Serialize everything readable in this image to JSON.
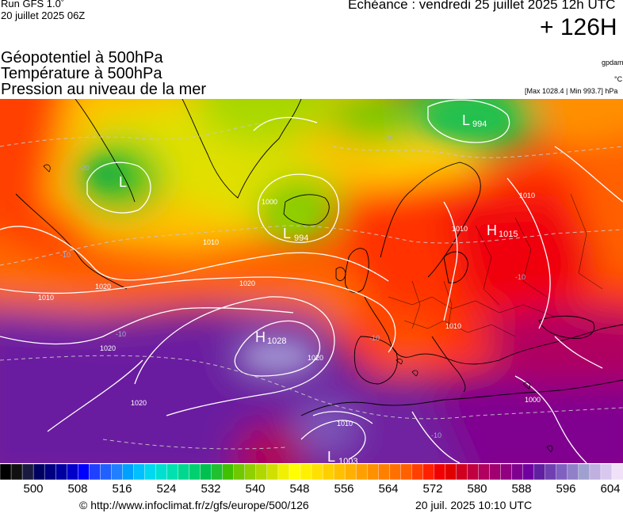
{
  "header": {
    "run": "Run GFS 1.0˚",
    "run_date": "20 juillet 2025 06Z",
    "echeance": "Echéance : vendredi 25 juillet 2025 12h UTC",
    "lead": "+ 126H"
  },
  "titles": {
    "line1": "Géopotentiel à 500hPa",
    "line2": "Température à 500hPa",
    "line3": "Pression au niveau de la mer"
  },
  "units": {
    "gpdam": "gpdam",
    "celsius": "°C",
    "minmax": "[Max 1028.4 | Min 993.7] hPa"
  },
  "pressure_centers": [
    {
      "type": "L",
      "value": "994"
    },
    {
      "type": "L",
      "value": "994"
    },
    {
      "type": "L",
      "value": "1003"
    },
    {
      "type": "L",
      "value": ""
    },
    {
      "type": "H",
      "value": "1015"
    },
    {
      "type": "H",
      "value": "1028"
    }
  ],
  "isobar_labels": [
    "1000",
    "1010",
    "1010",
    "1010",
    "1010",
    "1010",
    "1020",
    "1020",
    "1020",
    "1020",
    "1020",
    "1010",
    "1000"
  ],
  "isotherm_labels": [
    "-20",
    "-10",
    "-10",
    "-10",
    "-10",
    "-10",
    "-10"
  ],
  "colorbar": {
    "ticks": [
      "500",
      "508",
      "516",
      "524",
      "532",
      "540",
      "548",
      "556",
      "564",
      "572",
      "580",
      "588",
      "596",
      "604"
    ],
    "colors": [
      "#000000",
      "#101010",
      "#1a1a40",
      "#000060",
      "#000080",
      "#0000a0",
      "#0000c8",
      "#0000ff",
      "#2040ff",
      "#2060ff",
      "#2080ff",
      "#00a0ff",
      "#00c0ff",
      "#00d8f0",
      "#00e0d0",
      "#00e0b0",
      "#00d890",
      "#00d070",
      "#00c050",
      "#20c030",
      "#40c000",
      "#70c800",
      "#90d000",
      "#b0d800",
      "#d0e000",
      "#f0f000",
      "#ffff00",
      "#fff000",
      "#ffe000",
      "#ffd000",
      "#ffc000",
      "#ffb000",
      "#ffa000",
      "#ff9000",
      "#ff8000",
      "#ff7000",
      "#ff6000",
      "#ff4000",
      "#ff2000",
      "#f00000",
      "#e00000",
      "#d00020",
      "#c00040",
      "#b00060",
      "#a00070",
      "#900080",
      "#800090",
      "#7000a0",
      "#6020a0",
      "#7040b0",
      "#8060c0",
      "#9080c8",
      "#a0a0d0",
      "#c0b0e0",
      "#d8c8f0",
      "#f0e0f8"
    ]
  },
  "footer": {
    "url": "© http://www.infoclimat.fr/z/gfs/europe/500/126",
    "date": "20 juil. 2025 10:10 UTC"
  }
}
